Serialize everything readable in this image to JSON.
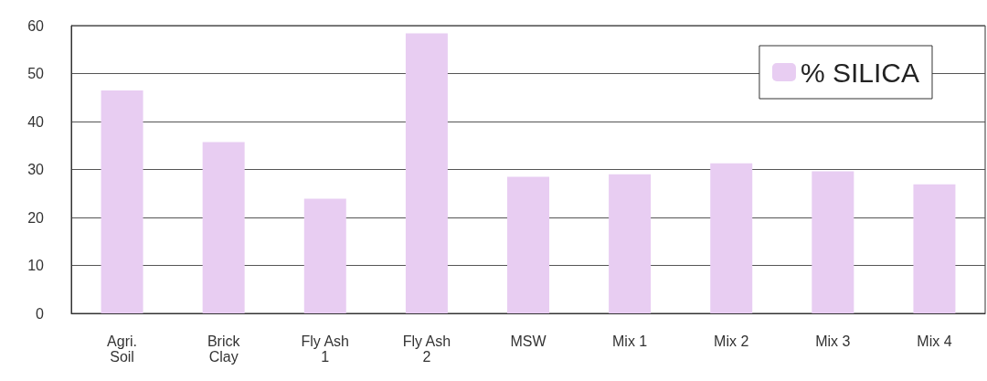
{
  "chart_data": {
    "type": "bar",
    "categories": [
      "Agri.\nSoil",
      "Brick\nClay",
      "Fly Ash\n1",
      "Fly Ash\n2",
      "MSW",
      "Mix 1",
      "Mix 2",
      "Mix 3",
      "Mix 4"
    ],
    "series": [
      {
        "name": "% SILICA",
        "color": "#e8cdf2",
        "values": [
          46.5,
          35.7,
          23.9,
          58.4,
          28.5,
          29,
          31.3,
          29.6,
          26.9
        ]
      }
    ],
    "ylim": [
      0,
      60
    ],
    "yticks": [
      0,
      10,
      20,
      30,
      40,
      50,
      60
    ],
    "grid": "y",
    "legend": "top right"
  }
}
